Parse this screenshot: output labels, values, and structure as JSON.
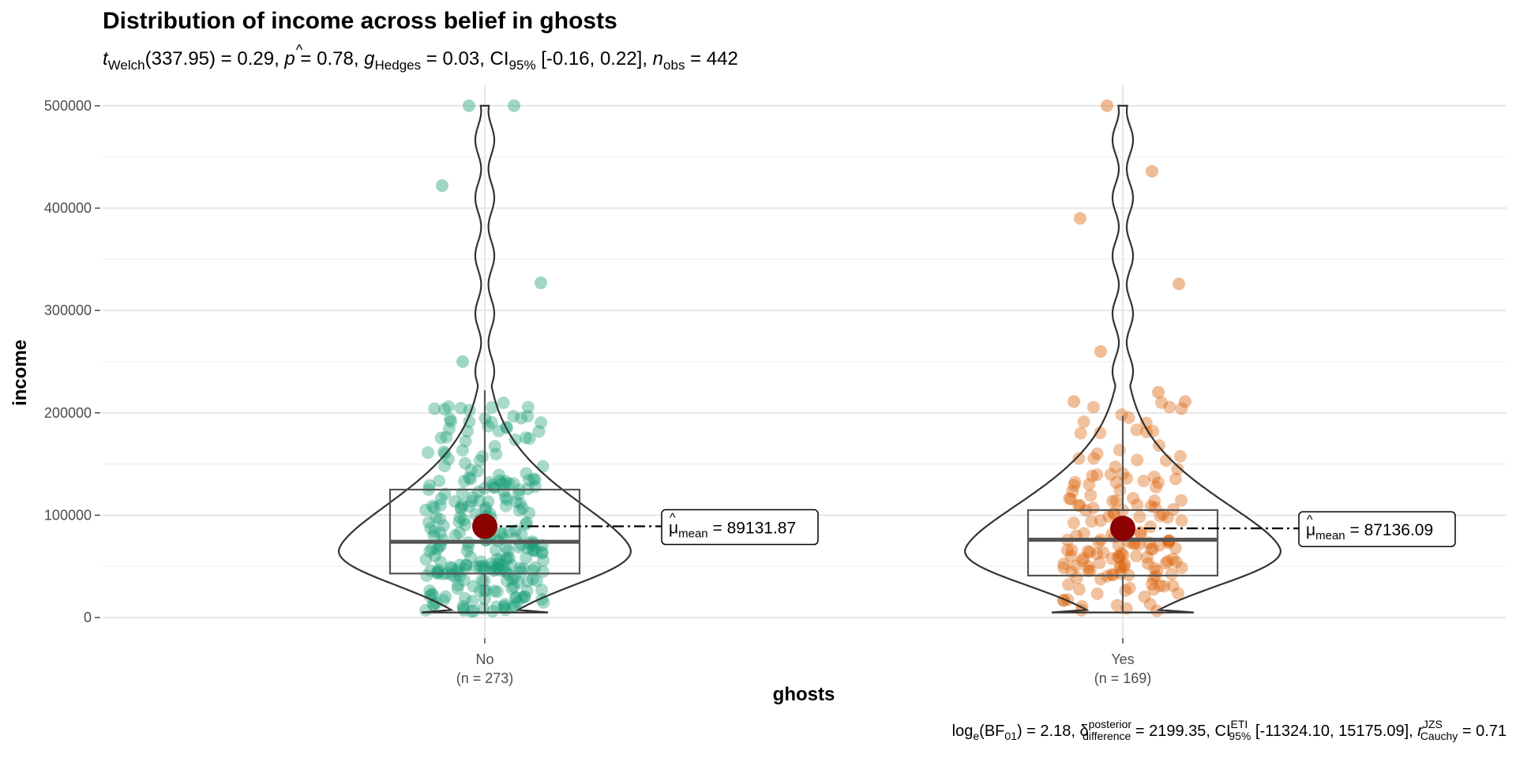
{
  "chart_data": {
    "type": "violin-box-scatter",
    "title": "Distribution of income across belief in ghosts",
    "subtitle": {
      "t_label": "t",
      "t_sub": "Welch",
      "t_value": "(337.95) = 0.29, ",
      "p_label": "p",
      "p_value": " = 0.78, ",
      "g_label": "g",
      "g_hat": "^",
      "g_sub": "Hedges",
      "g_value": " = 0.03, CI",
      "ci_sub": "95%",
      "ci_value": " [-0.16, 0.22], ",
      "n_label": "n",
      "n_sub": "obs",
      "n_value": " = 442"
    },
    "xlabel": "ghosts",
    "ylabel": "income",
    "ylim": [
      -20000,
      520000
    ],
    "yticks": [
      0,
      100000,
      200000,
      300000,
      400000,
      500000
    ],
    "ytick_labels": [
      "0",
      "100000",
      "200000",
      "300000",
      "400000",
      "500000"
    ],
    "groups": [
      {
        "name": "No",
        "n_label": "(n = 273)",
        "color": "#1b9e77",
        "mean": 89131.87,
        "mean_label": "89131.87",
        "box": {
          "q1": 43000,
          "median": 74000,
          "q3": 125000,
          "whisker_low": 5000,
          "whisker_high": 222000
        },
        "violin_range": [
          5000,
          500000
        ],
        "outliers": [
          500000,
          500000,
          422000,
          327000,
          250000
        ],
        "n": 273
      },
      {
        "name": "Yes",
        "n_label": "(n = 169)",
        "color": "#d95f02",
        "mean": 87136.09,
        "mean_label": "87136.09",
        "box": {
          "q1": 41000,
          "median": 76000,
          "q3": 105000,
          "whisker_low": 5000,
          "whisker_high": 197000
        },
        "violin_range": [
          5000,
          500000
        ],
        "outliers": [
          500000,
          436000,
          390000,
          326000,
          260000,
          220000,
          211000,
          211000
        ],
        "n": 169
      }
    ],
    "mean_prefix": "μ",
    "mean_sub": "mean",
    "mean_eq": " = ",
    "mean_point_color": "#8b0000",
    "caption": {
      "log_label": "log",
      "log_sub": "e",
      "bf_label": "(BF",
      "bf_sub": "01",
      "bf_value": ") = 2.18, ",
      "delta_label": "δ",
      "delta_sup": "posterior",
      "delta_sub": "difference",
      "delta_value": " = 2199.35, CI",
      "ci_sup": "ETI",
      "ci_sub": "95%",
      "ci_value": " [-11324.10, 15175.09], ",
      "r_label": "r",
      "r_sup": "JZS",
      "r_sub": "Cauchy",
      "r_value": " = 0.71"
    }
  }
}
